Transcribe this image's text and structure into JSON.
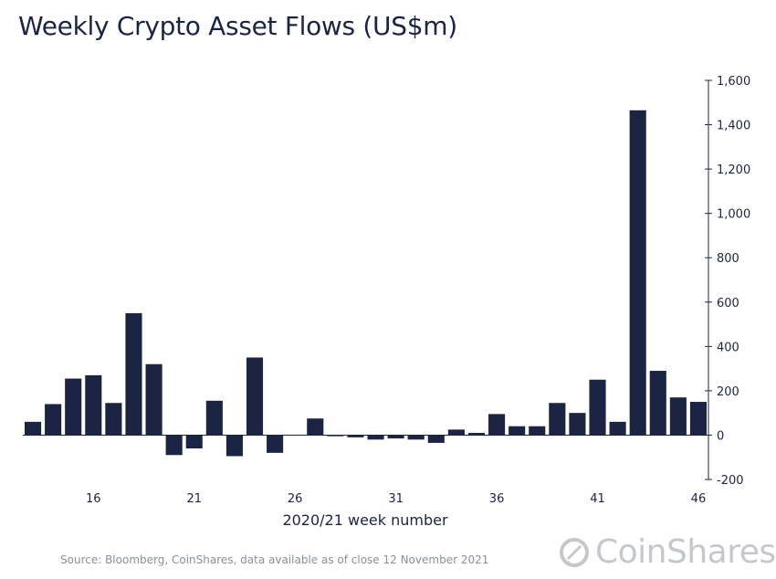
{
  "chart_data": {
    "type": "bar",
    "title": "Weekly Crypto Asset Flows (US$m)",
    "xlabel": "2020/21 week number",
    "ylabel": "",
    "ylim": [
      -200,
      1600
    ],
    "yticks": [
      "-200",
      "0",
      "200",
      "400",
      "600",
      "800",
      "1,000",
      "1,200",
      "1,400",
      "1,600"
    ],
    "ytick_values": [
      -200,
      0,
      200,
      400,
      600,
      800,
      1000,
      1200,
      1400,
      1600
    ],
    "xtick_labels": [
      "16",
      "21",
      "26",
      "31",
      "36",
      "41",
      "46"
    ],
    "xtick_values": [
      16,
      21,
      26,
      31,
      36,
      41,
      46
    ],
    "x_range": [
      13,
      46
    ],
    "color": "#1b2543",
    "categories": [
      13,
      14,
      15,
      16,
      17,
      18,
      19,
      20,
      21,
      22,
      23,
      24,
      25,
      26,
      27,
      28,
      29,
      30,
      31,
      32,
      33,
      34,
      35,
      36,
      37,
      38,
      39,
      40,
      41,
      42,
      43,
      44,
      45,
      46
    ],
    "values": [
      60,
      140,
      255,
      270,
      145,
      550,
      320,
      -90,
      -60,
      155,
      -95,
      350,
      -80,
      0,
      75,
      -5,
      -10,
      -20,
      -15,
      -20,
      -35,
      25,
      10,
      95,
      40,
      40,
      145,
      100,
      250,
      60,
      1465,
      290,
      170,
      150
    ]
  },
  "source": "Source: Bloomberg, CoinShares, data available as of close 12 November 2021",
  "logo": {
    "text": "CoinShares",
    "icon": "coinshares-logo-icon"
  }
}
